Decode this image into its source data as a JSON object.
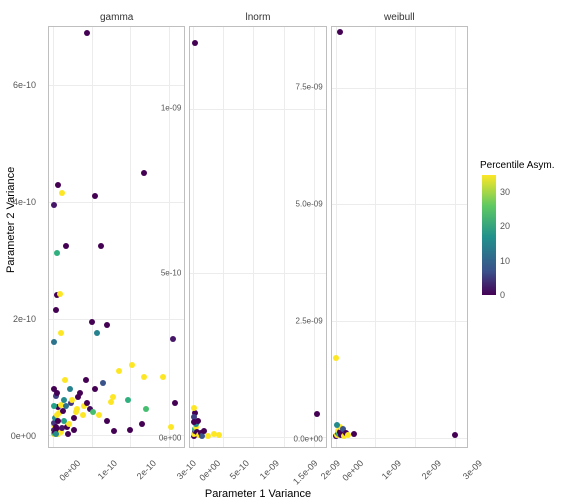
{
  "x_label": "Parameter 1 Variance",
  "y_label": "Parameter 2 Variance",
  "legend": {
    "title": "Percentile Asym.",
    "min": 0,
    "max": 35,
    "ticks": [
      0,
      10,
      20,
      30
    ],
    "stops": [
      {
        "v": 0,
        "c": "#440154"
      },
      {
        "v": 7,
        "c": "#3b528b"
      },
      {
        "v": 17,
        "c": "#21918c"
      },
      {
        "v": 26,
        "c": "#5ec962"
      },
      {
        "v": 35,
        "c": "#fde725"
      }
    ]
  },
  "viridis_stops": [
    [
      0.0,
      "#440154"
    ],
    [
      0.1,
      "#482878"
    ],
    [
      0.2,
      "#3e4a89"
    ],
    [
      0.3,
      "#31688e"
    ],
    [
      0.4,
      "#26828e"
    ],
    [
      0.5,
      "#1f9e89"
    ],
    [
      0.6,
      "#35b779"
    ],
    [
      0.7,
      "#6ece58"
    ],
    [
      0.8,
      "#b5de2b"
    ],
    [
      0.9,
      "#fde725"
    ],
    [
      1.0,
      "#fde725"
    ]
  ],
  "layout": {
    "background": "#ffffff",
    "panel_border": "#bfbfbf",
    "grid_color": "#ececec",
    "point_size": 6,
    "tick_fontsize": 9,
    "label_fontsize": 11,
    "title_fontsize": 10
  },
  "facets": [
    {
      "title": "gamma",
      "xlim": [
        -1e-11,
        3.4e-10
      ],
      "ylim": [
        -2e-11,
        7e-10
      ],
      "x_ticks": [
        {
          "v": 0.0,
          "label": "0e+00"
        },
        {
          "v": 1e-10,
          "label": "1e-10"
        },
        {
          "v": 2e-10,
          "label": "2e-10"
        },
        {
          "v": 3e-10,
          "label": "3e-10"
        }
      ],
      "y_ticks": [
        {
          "v": 0.0,
          "label": "0e+00"
        },
        {
          "v": 2e-10,
          "label": "2e-10"
        },
        {
          "v": 4e-10,
          "label": "4e-10"
        },
        {
          "v": 6e-10,
          "label": "6e-10"
        }
      ],
      "points": [
        {
          "x": 5e-12,
          "y": 5e-12,
          "c": 0
        },
        {
          "x": 3e-12,
          "y": 1e-11,
          "c": 3
        },
        {
          "x": 2e-12,
          "y": 1.8e-11,
          "c": 33
        },
        {
          "x": 4e-12,
          "y": 2.2e-11,
          "c": 5
        },
        {
          "x": 1.2e-11,
          "y": 3e-12,
          "c": 32
        },
        {
          "x": 8e-12,
          "y": 8e-12,
          "c": 1
        },
        {
          "x": 6e-12,
          "y": 3e-11,
          "c": 15
        },
        {
          "x": 1e-11,
          "y": 3.5e-11,
          "c": 34
        },
        {
          "x": 1.8e-11,
          "y": 1e-11,
          "c": 0
        },
        {
          "x": 2e-11,
          "y": 5e-12,
          "c": 34
        },
        {
          "x": 2.4e-11,
          "y": 1.2e-11,
          "c": 2
        },
        {
          "x": 3e-11,
          "y": 2.5e-11,
          "c": 18
        },
        {
          "x": 3.6e-11,
          "y": 1.5e-11,
          "c": 0
        },
        {
          "x": 4.2e-11,
          "y": 2e-11,
          "c": 34
        },
        {
          "x": 4.8e-11,
          "y": 5.5e-11,
          "c": 5
        },
        {
          "x": 5e-11,
          "y": 6e-11,
          "c": 34
        },
        {
          "x": 5.5e-11,
          "y": 3e-11,
          "c": 0
        },
        {
          "x": 6e-11,
          "y": 4e-11,
          "c": 33
        },
        {
          "x": 6.2e-11,
          "y": 4.5e-11,
          "c": 32
        },
        {
          "x": 1.4e-11,
          "y": 4.8e-11,
          "c": 0
        },
        {
          "x": 2.2e-11,
          "y": 5.2e-11,
          "c": 34
        },
        {
          "x": 2.8e-11,
          "y": 6e-11,
          "c": 15
        },
        {
          "x": 7e-11,
          "y": 7.2e-11,
          "c": 0
        },
        {
          "x": 7.8e-11,
          "y": 3.5e-11,
          "c": 34
        },
        {
          "x": 8e-11,
          "y": 5e-11,
          "c": 33
        },
        {
          "x": 8.8e-11,
          "y": 5.5e-11,
          "c": 0
        },
        {
          "x": 9.5e-11,
          "y": 4.5e-11,
          "c": 1
        },
        {
          "x": 1e-10,
          "y": 1.95e-10,
          "c": 0
        },
        {
          "x": 1.05e-10,
          "y": 4e-11,
          "c": 22
        },
        {
          "x": 1.1e-10,
          "y": 8e-11,
          "c": 0
        },
        {
          "x": 1.15e-10,
          "y": 1.75e-10,
          "c": 14
        },
        {
          "x": 2e-11,
          "y": 1.75e-10,
          "c": 34
        },
        {
          "x": 3e-12,
          "y": 1.6e-10,
          "c": 12
        },
        {
          "x": 1.2e-10,
          "y": 3.5e-11,
          "c": 34
        },
        {
          "x": 1.3e-10,
          "y": 9e-11,
          "c": 8
        },
        {
          "x": 1.4e-10,
          "y": 2.5e-11,
          "c": 0
        },
        {
          "x": 1.5e-10,
          "y": 5.8e-11,
          "c": 33
        },
        {
          "x": 1.58e-10,
          "y": 8e-12,
          "c": 0
        },
        {
          "x": 1.55e-10,
          "y": 6.5e-11,
          "c": 33
        },
        {
          "x": 1.7e-10,
          "y": 1.1e-10,
          "c": 34
        },
        {
          "x": 1.95e-10,
          "y": 6e-11,
          "c": 20
        },
        {
          "x": 2e-10,
          "y": 1e-11,
          "c": 0
        },
        {
          "x": 2.05e-10,
          "y": 1.2e-10,
          "c": 34
        },
        {
          "x": 2.3e-10,
          "y": 2e-11,
          "c": 0
        },
        {
          "x": 2.35e-10,
          "y": 1e-10,
          "c": 34
        },
        {
          "x": 2.4e-10,
          "y": 4.5e-11,
          "c": 22
        },
        {
          "x": 1.4e-10,
          "y": 1.9e-10,
          "c": 0
        },
        {
          "x": 2.85e-10,
          "y": 1e-10,
          "c": 34
        },
        {
          "x": 3.05e-10,
          "y": 1.5e-11,
          "c": 34
        },
        {
          "x": 3.1e-10,
          "y": 1.65e-10,
          "c": 2
        },
        {
          "x": 3.15e-10,
          "y": 5.5e-11,
          "c": 0
        },
        {
          "x": 1e-11,
          "y": 2.4e-10,
          "c": 0
        },
        {
          "x": 1.8e-11,
          "y": 2.42e-10,
          "c": 34
        },
        {
          "x": 8e-12,
          "y": 2.15e-10,
          "c": 0
        },
        {
          "x": 1e-11,
          "y": 3.12e-10,
          "c": 20
        },
        {
          "x": 3.5e-11,
          "y": 3.25e-10,
          "c": 0
        },
        {
          "x": 1.25e-10,
          "y": 3.25e-10,
          "c": 0
        },
        {
          "x": 2.35e-10,
          "y": 4.5e-10,
          "c": 0
        },
        {
          "x": 1.1e-10,
          "y": 4.1e-10,
          "c": 0
        },
        {
          "x": 4e-12,
          "y": 3.95e-10,
          "c": 2
        },
        {
          "x": 2.4e-11,
          "y": 4.15e-10,
          "c": 34
        },
        {
          "x": 1.2e-11,
          "y": 4.3e-10,
          "c": 0
        },
        {
          "x": 8.8e-11,
          "y": 6.9e-10,
          "c": 0
        },
        {
          "x": 4e-12,
          "y": 5e-11,
          "c": 18
        },
        {
          "x": 7e-12,
          "y": 6.8e-11,
          "c": 6
        },
        {
          "x": 1e-11,
          "y": 7.2e-11,
          "c": 0
        },
        {
          "x": 4.5e-11,
          "y": 8e-11,
          "c": 14
        },
        {
          "x": 5.5e-11,
          "y": 1e-11,
          "c": 0
        },
        {
          "x": 2e-12,
          "y": 2e-12,
          "c": 34
        },
        {
          "x": 3e-12,
          "y": 4e-12,
          "c": 22
        },
        {
          "x": 5e-12,
          "y": 6e-12,
          "c": 0
        },
        {
          "x": 7e-12,
          "y": 3e-12,
          "c": 15
        },
        {
          "x": 9e-12,
          "y": 1.5e-11,
          "c": 0
        },
        {
          "x": 1.4e-11,
          "y": 2.4e-11,
          "c": 0
        },
        {
          "x": 1.6e-11,
          "y": 3.8e-11,
          "c": 34
        },
        {
          "x": 2.6e-11,
          "y": 4.2e-11,
          "c": 0
        },
        {
          "x": 3.4e-11,
          "y": 5e-11,
          "c": 12
        },
        {
          "x": 4e-11,
          "y": 2e-12,
          "c": 0
        },
        {
          "x": 6.5e-11,
          "y": 6.5e-11,
          "c": 0
        },
        {
          "x": 8.5e-11,
          "y": 9.5e-11,
          "c": 0
        },
        {
          "x": 4e-12,
          "y": 8e-11,
          "c": 0
        },
        {
          "x": 3.2e-11,
          "y": 9.5e-11,
          "c": 34
        }
      ]
    },
    {
      "title": "lnorm",
      "xlim": [
        -5e-11,
        2.2e-09
      ],
      "ylim": [
        -3e-11,
        1.25e-09
      ],
      "x_ticks": [
        {
          "v": 0.0,
          "label": "0e+00"
        },
        {
          "v": 5e-10,
          "label": "5e-10"
        },
        {
          "v": 1e-09,
          "label": "1e-09"
        },
        {
          "v": 1.5e-09,
          "label": "1.5e-09"
        },
        {
          "v": 2e-09,
          "label": "2e-09"
        }
      ],
      "y_ticks": [
        {
          "v": 0.0,
          "label": "0e+00"
        },
        {
          "v": 5e-10,
          "label": "5e-10"
        },
        {
          "v": 1e-09,
          "label": "1e-09"
        }
      ],
      "points": [
        {
          "x": 1e-11,
          "y": 5e-12,
          "c": 0
        },
        {
          "x": 1.5e-11,
          "y": 1e-11,
          "c": 33
        },
        {
          "x": 2e-11,
          "y": 2e-11,
          "c": 5
        },
        {
          "x": 3e-11,
          "y": 2.5e-11,
          "c": 20
        },
        {
          "x": 4e-11,
          "y": 3e-11,
          "c": 34
        },
        {
          "x": 5e-11,
          "y": 4e-11,
          "c": 15
        },
        {
          "x": 6e-11,
          "y": 1.5e-11,
          "c": 0
        },
        {
          "x": 7e-11,
          "y": 5e-11,
          "c": 0
        },
        {
          "x": 9e-11,
          "y": 8e-12,
          "c": 34
        },
        {
          "x": 1.2e-10,
          "y": 1.2e-11,
          "c": 0
        },
        {
          "x": 1.4e-10,
          "y": 4e-12,
          "c": 8
        },
        {
          "x": 1.8e-10,
          "y": 1.8e-11,
          "c": 0
        },
        {
          "x": 2.5e-10,
          "y": 5e-12,
          "c": 34
        },
        {
          "x": 3.5e-10,
          "y": 1e-11,
          "c": 34
        },
        {
          "x": 4.25e-10,
          "y": 6e-12,
          "c": 34
        },
        {
          "x": 2.05e-09,
          "y": 7e-11,
          "c": 0
        },
        {
          "x": 2e-11,
          "y": 7.5e-11,
          "c": 0
        },
        {
          "x": 1.8e-11,
          "y": 9e-11,
          "c": 34
        },
        {
          "x": 1.2e-11,
          "y": 6e-11,
          "c": 6
        },
        {
          "x": 8e-12,
          "y": 4.5e-11,
          "c": 0
        },
        {
          "x": 2.2e-11,
          "y": 1.2e-09,
          "c": 0
        }
      ]
    },
    {
      "title": "weibull",
      "xlim": [
        -1e-10,
        3.3e-09
      ],
      "ylim": [
        -2e-10,
        8.8e-09
      ],
      "x_ticks": [
        {
          "v": 0.0,
          "label": "0e+00"
        },
        {
          "v": 1e-09,
          "label": "1e-09"
        },
        {
          "v": 2e-09,
          "label": "2e-09"
        },
        {
          "v": 3e-09,
          "label": "3e-09"
        }
      ],
      "y_ticks": [
        {
          "v": 0.0,
          "label": "0.0e+00"
        },
        {
          "v": 2.5e-09,
          "label": "2.5e-09"
        },
        {
          "v": 5e-09,
          "label": "5.0e-09"
        },
        {
          "v": 7.5e-09,
          "label": "7.5e-09"
        }
      ],
      "points": [
        {
          "x": 2e-11,
          "y": 3e-11,
          "c": 0
        },
        {
          "x": 3e-11,
          "y": 5e-11,
          "c": 34
        },
        {
          "x": 5e-11,
          "y": 1e-10,
          "c": 5
        },
        {
          "x": 7e-11,
          "y": 1.5e-10,
          "c": 33
        },
        {
          "x": 8e-11,
          "y": 8e-11,
          "c": 20
        },
        {
          "x": 1e-10,
          "y": 1.2e-10,
          "c": 0
        },
        {
          "x": 1.2e-10,
          "y": 2.2e-10,
          "c": 34
        },
        {
          "x": 1.4e-10,
          "y": 6e-11,
          "c": 0
        },
        {
          "x": 1.8e-10,
          "y": 1.8e-10,
          "c": 8
        },
        {
          "x": 2e-10,
          "y": 4e-11,
          "c": 34
        },
        {
          "x": 2.5e-10,
          "y": 1e-10,
          "c": 0
        },
        {
          "x": 3e-10,
          "y": 5e-11,
          "c": 34
        },
        {
          "x": 4.5e-10,
          "y": 8e-11,
          "c": 0
        },
        {
          "x": 3e-09,
          "y": 6e-11,
          "c": 0
        },
        {
          "x": 4e-11,
          "y": 2.8e-10,
          "c": 15
        },
        {
          "x": 2e-11,
          "y": 1.7e-09,
          "c": 32
        },
        {
          "x": 1e-10,
          "y": 8.7e-09,
          "c": 0
        }
      ]
    }
  ]
}
